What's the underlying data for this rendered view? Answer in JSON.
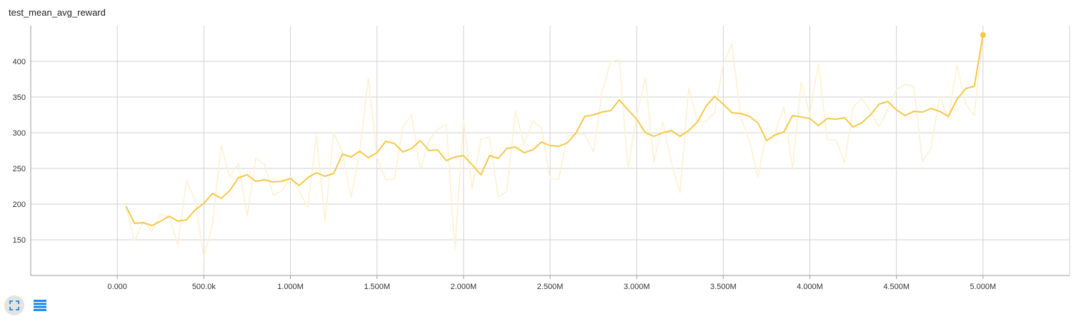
{
  "card": {
    "title": "test_mean_avg_reward"
  },
  "controls": {
    "expand_icon": "fit-expand-icon",
    "data_icon": "toggle-data-table-icon"
  },
  "colors": {
    "smoothed_line": "#f6c84a",
    "raw_line": "#fdf1d2",
    "grid": "#d2d2d2",
    "axis": "#9e9e9e",
    "button_icon": "#1e88e5"
  },
  "chart_data": {
    "type": "line",
    "title": "test_mean_avg_reward",
    "xlabel": "",
    "ylabel": "",
    "xlim": [
      -500000,
      5500000
    ],
    "ylim": [
      100,
      450
    ],
    "grid": true,
    "x_ticks": [
      0,
      500000,
      1000000,
      1500000,
      2000000,
      2500000,
      3000000,
      3500000,
      4000000,
      4500000,
      5000000
    ],
    "x_tick_labels": [
      "0.000",
      "500.0k",
      "1.000M",
      "1.500M",
      "2.000M",
      "2.500M",
      "3.000M",
      "3.500M",
      "4.000M",
      "4.500M",
      "5.000M"
    ],
    "y_ticks": [
      150,
      200,
      250,
      300,
      350,
      400
    ],
    "y_tick_labels": [
      "150",
      "200",
      "250",
      "300",
      "350",
      "400"
    ],
    "series": [
      {
        "role": "raw",
        "x": [
          50000,
          100000,
          150000,
          200000,
          250000,
          300000,
          350000,
          400000,
          450000,
          500000,
          550000,
          600000,
          650000,
          700000,
          750000,
          800000,
          850000,
          900000,
          950000,
          1000000,
          1050000,
          1100000,
          1150000,
          1200000,
          1250000,
          1300000,
          1350000,
          1400000,
          1450000,
          1500000,
          1550000,
          1600000,
          1650000,
          1700000,
          1750000,
          1800000,
          1850000,
          1900000,
          1950000,
          2000000,
          2050000,
          2100000,
          2150000,
          2200000,
          2250000,
          2300000,
          2350000,
          2400000,
          2450000,
          2500000,
          2550000,
          2600000,
          2650000,
          2700000,
          2750000,
          2800000,
          2850000,
          2900000,
          2950000,
          3000000,
          3050000,
          3100000,
          3150000,
          3200000,
          3250000,
          3300000,
          3350000,
          3400000,
          3450000,
          3500000,
          3550000,
          3600000,
          3650000,
          3700000,
          3750000,
          3800000,
          3850000,
          3900000,
          3950000,
          4000000,
          4050000,
          4100000,
          4150000,
          4200000,
          4250000,
          4300000,
          4350000,
          4400000,
          4450000,
          4500000,
          4550000,
          4600000,
          4650000,
          4700000,
          4750000,
          4800000,
          4850000,
          4900000,
          4950000,
          5000000
        ],
        "y": [
          196,
          148,
          176,
          162,
          186,
          182,
          143,
          234,
          205,
          125,
          172,
          282,
          238,
          257,
          183,
          264,
          256,
          213,
          218,
          238,
          218,
          196,
          296,
          176,
          300,
          272,
          210,
          272,
          377,
          266,
          234,
          235,
          308,
          325,
          248,
          289,
          305,
          312,
          136,
          317,
          222,
          291,
          294,
          210,
          218,
          330,
          284,
          316,
          307,
          235,
          235,
          296,
          298,
          298,
          273,
          357,
          400,
          402,
          249,
          325,
          377,
          259,
          316,
          259,
          216,
          363,
          316,
          316,
          328,
          397,
          424,
          322,
          290,
          238,
          300,
          300,
          336,
          248,
          371,
          326,
          397,
          290,
          290,
          258,
          336,
          348,
          330,
          308,
          333,
          360,
          368,
          365,
          260,
          278,
          352,
          318,
          395,
          340,
          324,
          437
        ]
      },
      {
        "role": "smoothed",
        "x": [
          50000,
          100000,
          150000,
          200000,
          250000,
          300000,
          350000,
          400000,
          450000,
          500000,
          550000,
          600000,
          650000,
          700000,
          750000,
          800000,
          850000,
          900000,
          950000,
          1000000,
          1050000,
          1100000,
          1150000,
          1200000,
          1250000,
          1300000,
          1350000,
          1400000,
          1450000,
          1500000,
          1550000,
          1600000,
          1650000,
          1700000,
          1750000,
          1800000,
          1850000,
          1900000,
          1950000,
          2000000,
          2050000,
          2100000,
          2150000,
          2200000,
          2250000,
          2300000,
          2350000,
          2400000,
          2450000,
          2500000,
          2550000,
          2600000,
          2650000,
          2700000,
          2750000,
          2800000,
          2850000,
          2900000,
          2950000,
          3000000,
          3050000,
          3100000,
          3150000,
          3200000,
          3250000,
          3300000,
          3350000,
          3400000,
          3450000,
          3500000,
          3550000,
          3600000,
          3650000,
          3700000,
          3750000,
          3800000,
          3850000,
          3900000,
          3950000,
          4000000,
          4050000,
          4100000,
          4150000,
          4200000,
          4250000,
          4300000,
          4350000,
          4400000,
          4450000,
          4500000,
          4550000,
          4600000,
          4650000,
          4700000,
          4750000,
          4800000,
          4850000,
          4900000,
          4950000,
          5000000
        ],
        "y": [
          197,
          173,
          174,
          170,
          176,
          183,
          176,
          178,
          192,
          201,
          215,
          208,
          219,
          237,
          241,
          232,
          234,
          231,
          232,
          236,
          226,
          237,
          244,
          239,
          243,
          270,
          266,
          274,
          265,
          272,
          288,
          285,
          273,
          278,
          289,
          275,
          276,
          261,
          266,
          268,
          255,
          241,
          268,
          264,
          278,
          280,
          272,
          276,
          287,
          282,
          281,
          286,
          300,
          323,
          325,
          329,
          331,
          346,
          332,
          319,
          300,
          295,
          300,
          303,
          295,
          303,
          315,
          337,
          351,
          340,
          328,
          327,
          323,
          314,
          289,
          297,
          301,
          324,
          322,
          320,
          310,
          320,
          319,
          321,
          308,
          314,
          325,
          340,
          344,
          332,
          324,
          330,
          329,
          334,
          330,
          323,
          347,
          362,
          365,
          437
        ]
      }
    ]
  }
}
